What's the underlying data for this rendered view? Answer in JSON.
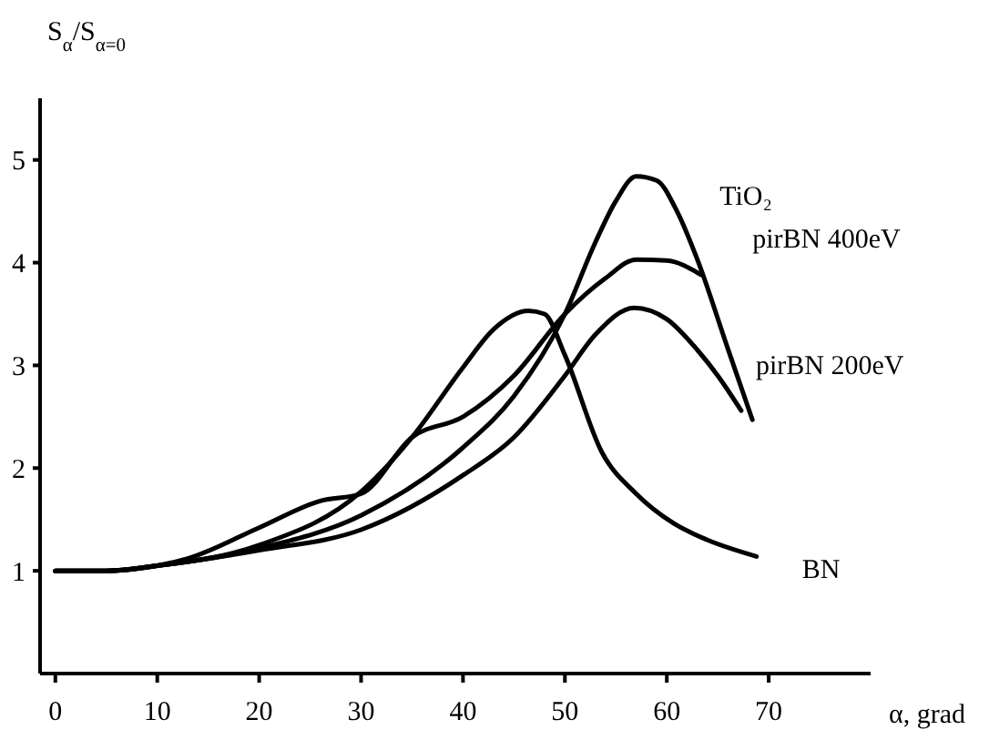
{
  "chart_data": {
    "type": "line",
    "xlabel": "α, grad",
    "ylabel": "S$_{α}$/S$_{α=0}$",
    "xlim": [
      -1.5,
      80
    ],
    "xticks": [
      0,
      10,
      20,
      30,
      40,
      50,
      60,
      70
    ],
    "ylim": [
      0,
      5.6
    ],
    "yticks": [
      1,
      2,
      3,
      4,
      5
    ],
    "grid": false,
    "legend": false,
    "marker": "none",
    "line_style": "solid",
    "series": [
      {
        "name": "TiO₂",
        "color": "#000000",
        "x": [
          0,
          5,
          10,
          20,
          30,
          40,
          45,
          50,
          53,
          55,
          57,
          59,
          61,
          63,
          66,
          68.4
        ],
        "values": [
          1,
          1,
          1.05,
          1.22,
          1.54,
          2.2,
          2.7,
          3.5,
          4.2,
          4.6,
          4.84,
          4.8,
          4.5,
          4.03,
          3.16,
          2.47
        ]
      },
      {
        "name": "pirBN 400eV",
        "color": "#000000",
        "x": [
          0,
          5,
          10,
          13,
          20,
          26,
          30,
          35,
          40,
          45,
          50,
          54,
          57,
          60,
          63.4
        ],
        "values": [
          1,
          1,
          1.05,
          1.12,
          1.42,
          1.68,
          1.75,
          2.3,
          2.5,
          2.9,
          3.5,
          3.85,
          4.03,
          4.02,
          3.88
        ]
      },
      {
        "name": "pirBN 200eV",
        "color": "#000000",
        "x": [
          0,
          5,
          10,
          20,
          30,
          40,
          45,
          50,
          53,
          56.8,
          60,
          63,
          65,
          67.3
        ],
        "values": [
          1,
          1,
          1.05,
          1.2,
          1.4,
          1.93,
          2.3,
          2.9,
          3.3,
          3.56,
          3.45,
          3.15,
          2.9,
          2.56
        ]
      },
      {
        "name": "BN",
        "color": "#000000",
        "x": [
          0,
          5,
          10,
          20,
          30,
          35,
          40,
          43,
          46.4,
          48,
          50,
          53.6,
          57,
          60.7,
          64,
          68.8
        ],
        "values": [
          1,
          1,
          1.05,
          1.25,
          1.77,
          2.3,
          2.98,
          3.35,
          3.53,
          3.5,
          3.1,
          2.16,
          1.75,
          1.46,
          1.3,
          1.14
        ]
      }
    ]
  }
}
